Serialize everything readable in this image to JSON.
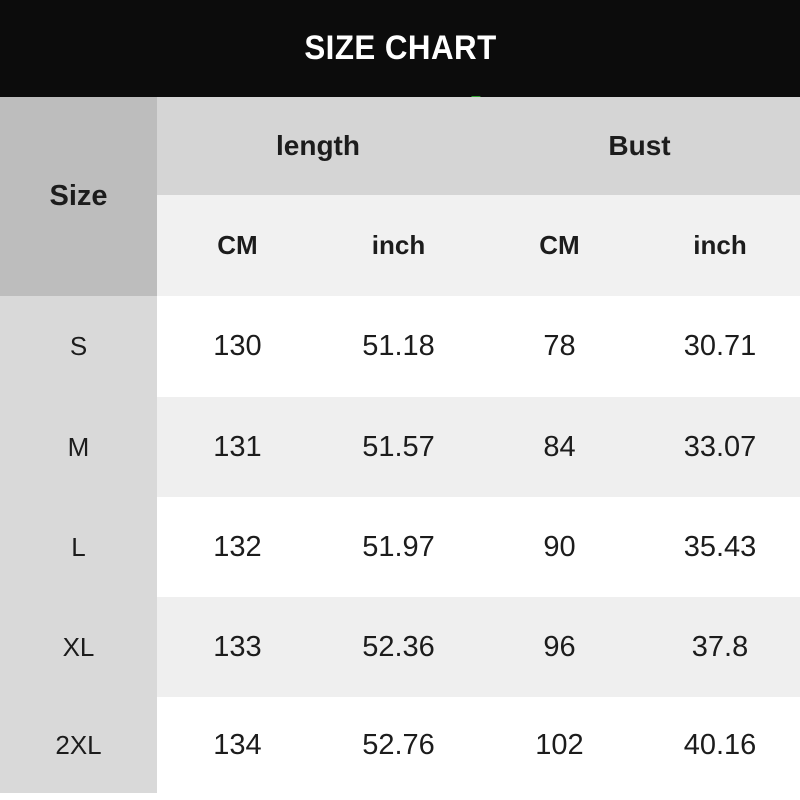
{
  "title": "SIZE CHART",
  "colors": {
    "title_bar_bg": "#0c0c0c",
    "title_text": "#ffffff",
    "size_header_bg": "#bdbdbd",
    "group_header_bg": "#d5d5d5",
    "unit_header_bg": "#f1f1f1",
    "size_column_bg": "#d9d9d9",
    "alt_row_bg": "#efefef",
    "accent_green": "#2f9e2f"
  },
  "icons": {
    "green_flag": "green-wedge"
  },
  "table": {
    "size_header": "Size",
    "groups": {
      "length": "length",
      "bust": "Bust"
    },
    "sub_headers": [
      "CM",
      "inch",
      "CM",
      "inch"
    ],
    "rows": [
      {
        "size": "S",
        "values": [
          "130",
          "51.18",
          "78",
          "30.71"
        ]
      },
      {
        "size": "M",
        "values": [
          "131",
          "51.57",
          "84",
          "33.07"
        ]
      },
      {
        "size": "L",
        "values": [
          "132",
          "51.97",
          "90",
          "35.43"
        ]
      },
      {
        "size": "XL",
        "values": [
          "133",
          "52.36",
          "96",
          "37.8"
        ]
      },
      {
        "size": "2XL",
        "values": [
          "134",
          "52.76",
          "102",
          "40.16"
        ]
      }
    ]
  },
  "chart_data": {
    "type": "table",
    "title": "SIZE CHART",
    "columns": [
      "Size",
      "length CM",
      "length inch",
      "Bust CM",
      "Bust inch"
    ],
    "rows": [
      [
        "S",
        130,
        51.18,
        78,
        30.71
      ],
      [
        "M",
        131,
        51.57,
        84,
        33.07
      ],
      [
        "L",
        132,
        51.97,
        90,
        35.43
      ],
      [
        "XL",
        133,
        52.36,
        96,
        37.8
      ],
      [
        "2XL",
        134,
        52.76,
        102,
        40.16
      ]
    ]
  }
}
